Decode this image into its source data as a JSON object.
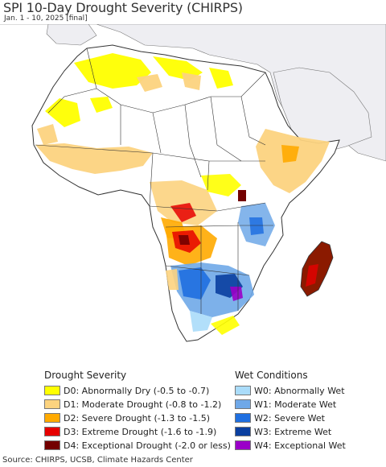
{
  "title": "SPI 10-Day Drought Severity (CHIRPS)",
  "subtitle": "Jan. 1 - 10, 2025 [final]",
  "legend": {
    "drought_title": "Drought Severity",
    "drought_items": [
      {
        "label": "D0: Abnormally Dry (-0.5 to -0.7)",
        "color": "#ffff00"
      },
      {
        "label": "D1: Moderate Drought (-0.8 to -1.2)",
        "color": "#fcd37f"
      },
      {
        "label": "D2: Severe Drought (-1.3 to -1.5)",
        "color": "#ffaa00"
      },
      {
        "label": "D3: Extreme Drought (-1.6 to -1.9)",
        "color": "#e60000"
      },
      {
        "label": "D4: Exceptional Drought (-2.0 or less)",
        "color": "#730000"
      }
    ],
    "wet_title": "Wet Conditions",
    "wet_items": [
      {
        "label": "W0: Abnormally Wet",
        "color": "#aadcfa"
      },
      {
        "label": "W1: Moderate Wet",
        "color": "#6fa8e8"
      },
      {
        "label": "W2: Severe Wet",
        "color": "#1f6fe0"
      },
      {
        "label": "W3: Extreme Wet",
        "color": "#0a3fa0"
      },
      {
        "label": "W4: Exceptional Wet",
        "color": "#9a00c8"
      }
    ]
  },
  "source": "Source: CHIRPS, UCSB, Climate Hazards Center",
  "colors": {
    "ocean": "#ffffff",
    "land_outside": "#eeeef2",
    "africa_land": "#ffffff",
    "border": "#333333"
  }
}
